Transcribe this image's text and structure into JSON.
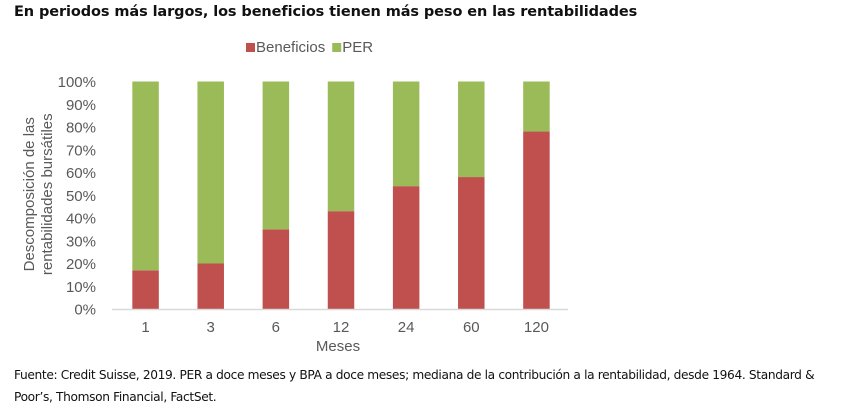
{
  "title": "En periodos más largos, los beneficios tienen más peso en las rentabilidades",
  "source": "Fuente: Credit Suisse, 2019. PER a doce meses y BPA a doce meses; mediana de la contribución a la rentabilidad, desde 1964. Standard & Poor’s, Thomson Financial, FactSet.",
  "chart_data": {
    "type": "bar",
    "stacked": true,
    "title": "En periodos más largos, los beneficios tienen más peso en las rentabilidades",
    "xlabel": "Meses",
    "ylabel": "Descomposición de las rentabilidades bursátiles",
    "ylabel_lines": [
      "Descomposición de las",
      "rentabilidades bursátiles"
    ],
    "categories": [
      "1",
      "3",
      "6",
      "12",
      "24",
      "60",
      "120"
    ],
    "series": [
      {
        "name": "Beneficios",
        "color": "#C0504D",
        "values": [
          17,
          20,
          35,
          43,
          54,
          58,
          78
        ]
      },
      {
        "name": "PER",
        "color": "#9BBB59",
        "values": [
          83,
          80,
          65,
          57,
          46,
          42,
          22
        ]
      }
    ],
    "ylim": [
      0,
      100
    ],
    "yticks": [
      "0%",
      "10%",
      "20%",
      "30%",
      "40%",
      "50%",
      "60%",
      "70%",
      "80%",
      "90%",
      "100%"
    ],
    "grid": false,
    "legend": "top-center"
  }
}
